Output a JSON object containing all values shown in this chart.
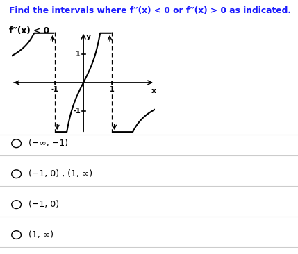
{
  "title_line1": "Find the intervals where f′′(x) < 0 or f′′(x) > 0 as indicated.",
  "subtitle": "f′′(x) < 0",
  "bg_color": "#ffffff",
  "options": [
    "(−∞, −1)",
    "(−1, 0) , (1, ∞)",
    "(−1, 0)",
    "(1, ∞)"
  ],
  "title_color": "#1a1aff",
  "subtitle_color": "#000000",
  "option_color": "#000000",
  "separator_color": "#cccccc",
  "graph_xlim": [
    -2.5,
    2.5
  ],
  "graph_ylim": [
    -1.8,
    1.8
  ]
}
